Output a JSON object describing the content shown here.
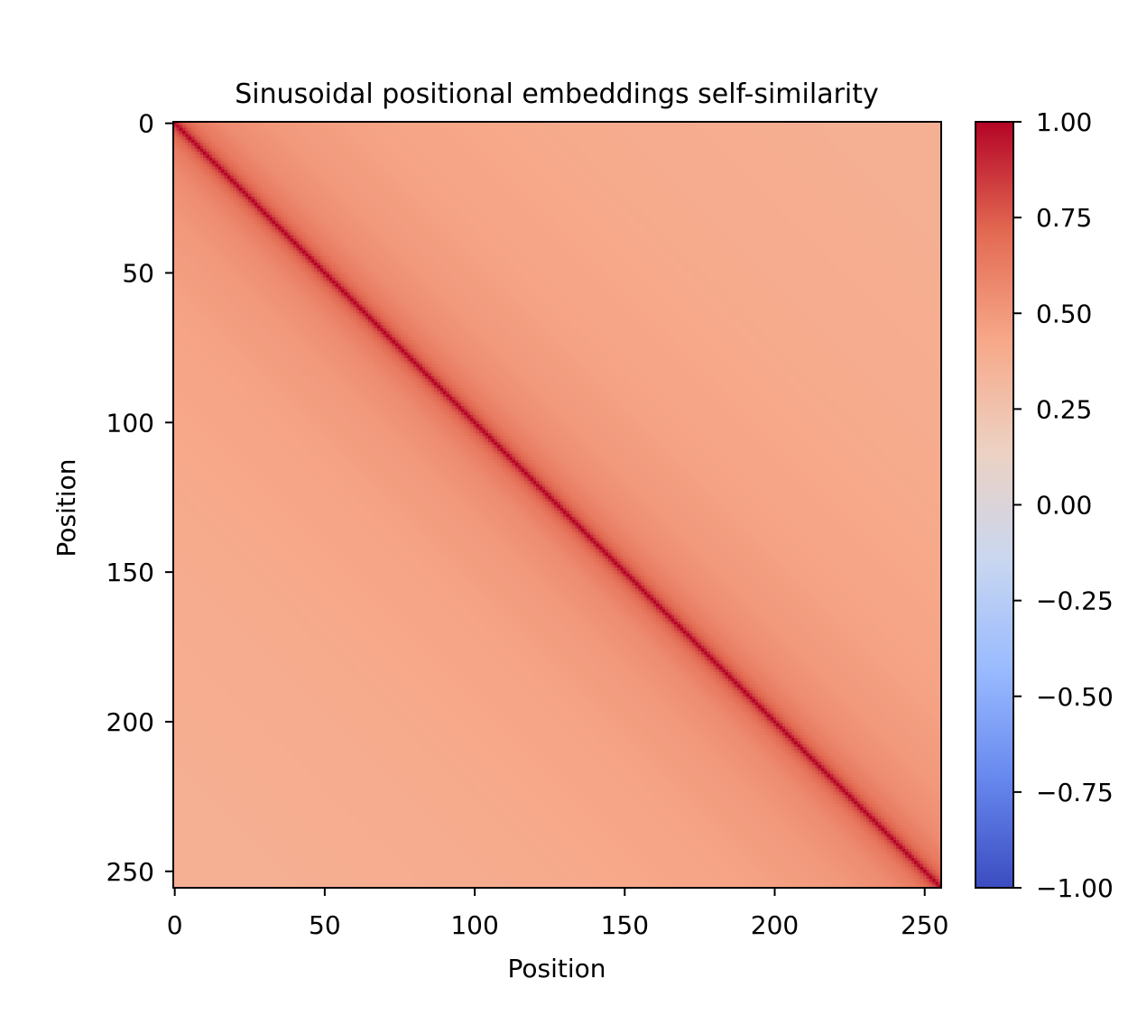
{
  "chart_data": {
    "type": "heatmap",
    "title": "Sinusoidal positional embeddings self-similarity",
    "xlabel": "Position",
    "ylabel": "Position",
    "size": 256,
    "xlim": [
      0,
      255
    ],
    "ylim": [
      255,
      0
    ],
    "x_ticks": [
      0,
      50,
      100,
      150,
      200,
      250
    ],
    "y_ticks": [
      0,
      50,
      100,
      150,
      200,
      250
    ],
    "x_tick_labels": [
      "0",
      "50",
      "100",
      "150",
      "200",
      "250"
    ],
    "y_tick_labels": [
      "0",
      "50",
      "100",
      "150",
      "200",
      "250"
    ],
    "colormap": "coolwarm",
    "colorbar": {
      "range": [
        -1.0,
        1.0
      ],
      "ticks": [
        1.0,
        0.75,
        0.5,
        0.25,
        0.0,
        -0.25,
        -0.5,
        -0.75,
        -1.0
      ],
      "tick_labels": [
        "1.00",
        "0.75",
        "0.50",
        "0.25",
        "0.00",
        "−0.25",
        "−0.50",
        "−0.75",
        "−1.00"
      ],
      "colors": [
        "#3b4cc0",
        "#6788ee",
        "#9abbff",
        "#c9d7f0",
        "#edd1c2",
        "#f7a889",
        "#e26952",
        "#b40426"
      ]
    },
    "diagonal_value": 1.0,
    "similarity_profile": {
      "offsets": [
        0,
        1,
        2,
        4,
        8,
        16,
        32,
        64,
        128,
        255
      ],
      "values": [
        1.0,
        0.9,
        0.8,
        0.72,
        0.63,
        0.56,
        0.5,
        0.45,
        0.41,
        0.37
      ]
    },
    "grid": false
  }
}
